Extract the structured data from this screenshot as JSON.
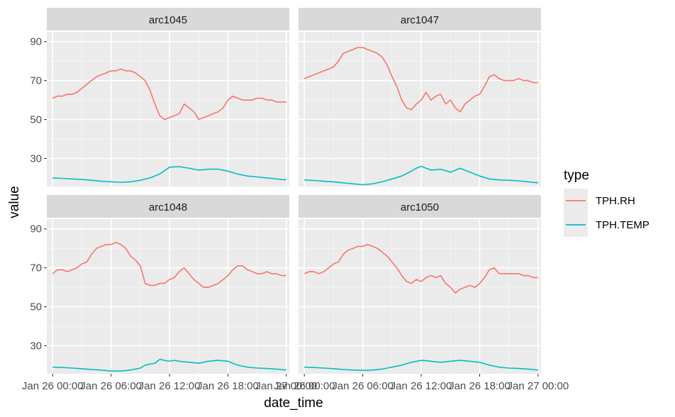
{
  "chart_data": {
    "type": "line",
    "facet_by": "station",
    "xlabel": "date_time",
    "ylabel": "value",
    "xlim": [
      -0.6,
      24.3
    ],
    "ylim": [
      15.6,
      95
    ],
    "x_ticks": [
      0,
      6,
      12,
      18,
      24
    ],
    "x_tick_labels": [
      "Jan 26 00:00",
      "Jan 26 06:00",
      "Jan 26 12:00",
      "Jan 26 18:00",
      "Jan 27 00:00"
    ],
    "y_ticks": [
      30,
      50,
      70,
      90
    ],
    "y_tick_labels": [
      "30",
      "50",
      "70",
      "90"
    ],
    "grid": true,
    "legend": {
      "title": "type",
      "position": "right",
      "entries": [
        {
          "name": "TPH.RH",
          "color": "#F8766D"
        },
        {
          "name": "TPH.TEMP",
          "color": "#00BFC4"
        }
      ]
    },
    "colors": {
      "TPH.RH": "#F8766D",
      "TPH.TEMP": "#00BFC4"
    },
    "panels": [
      {
        "title": "arc1045",
        "series": [
          {
            "name": "TPH.RH",
            "x": [
              0,
              0.5,
              1,
              1.5,
              2,
              2.5,
              3,
              3.5,
              4,
              4.5,
              5,
              5.5,
              6,
              6.5,
              7,
              7.5,
              8,
              8.5,
              9,
              9.5,
              10,
              10.5,
              11,
              11.5,
              12,
              12.5,
              13,
              13.5,
              14,
              14.5,
              15,
              15.5,
              16,
              16.5,
              17,
              17.5,
              18,
              18.5,
              19,
              19.5,
              20,
              20.5,
              21,
              21.5,
              22,
              22.5,
              23,
              23.5,
              24
            ],
            "y": [
              61,
              62,
              62,
              63,
              63,
              64,
              66,
              68,
              70,
              72,
              73,
              74,
              75,
              75,
              76,
              75,
              75,
              74,
              72,
              70,
              65,
              58,
              52,
              50,
              51,
              52,
              53,
              58,
              56,
              54,
              50,
              51,
              52,
              53,
              54,
              56,
              60,
              62,
              61,
              60,
              60,
              60,
              61,
              61,
              60,
              60,
              59,
              59,
              59
            ]
          },
          {
            "name": "TPH.TEMP",
            "x": [
              0,
              1,
              2,
              3,
              4,
              5,
              6,
              7,
              8,
              9,
              10,
              11,
              12,
              13,
              14,
              15,
              16,
              17,
              18,
              19,
              20,
              21,
              22,
              23,
              24
            ],
            "y": [
              20,
              19.8,
              19.5,
              19.2,
              18.8,
              18.3,
              18,
              17.8,
              18,
              18.8,
              20,
              22,
              25.5,
              25.8,
              25,
              24,
              24.5,
              24.5,
              23.5,
              22,
              21,
              20.5,
              20,
              19.5,
              19
            ]
          }
        ]
      },
      {
        "title": "arc1047",
        "series": [
          {
            "name": "TPH.RH",
            "x": [
              0,
              0.5,
              1,
              1.5,
              2,
              2.5,
              3,
              3.5,
              4,
              4.5,
              5,
              5.5,
              6,
              6.5,
              7,
              7.5,
              8,
              8.5,
              9,
              9.5,
              10,
              10.5,
              11,
              11.5,
              12,
              12.5,
              13,
              13.5,
              14,
              14.5,
              15,
              15.5,
              16,
              16.5,
              17,
              17.5,
              18,
              18.5,
              19,
              19.5,
              20,
              20.5,
              21,
              21.5,
              22,
              22.5,
              23,
              23.5,
              24
            ],
            "y": [
              71,
              72,
              73,
              74,
              75,
              76,
              77,
              80,
              84,
              85,
              86,
              87,
              87,
              86,
              85,
              84,
              82,
              78,
              72,
              67,
              60,
              56,
              55,
              58,
              60,
              64,
              60,
              62,
              63,
              58,
              60,
              56,
              54,
              58,
              60,
              62,
              63,
              67,
              72,
              73,
              71,
              70,
              70,
              70,
              71,
              70,
              70,
              69,
              69
            ]
          },
          {
            "name": "TPH.TEMP",
            "x": [
              0,
              1,
              2,
              3,
              4,
              5,
              6,
              7,
              8,
              9,
              10,
              11,
              11.5,
              12,
              12.5,
              13,
              14,
              15,
              16,
              17,
              18,
              19,
              20,
              21,
              22,
              23,
              24
            ],
            "y": [
              19,
              18.7,
              18.3,
              18,
              17.5,
              17,
              16.5,
              17,
              18,
              19.5,
              21,
              23.5,
              25,
              26,
              25,
              24,
              24.5,
              23,
              25,
              23,
              21,
              19.5,
              19,
              18.8,
              18.5,
              18,
              17.5
            ]
          }
        ]
      },
      {
        "title": "arc1048",
        "series": [
          {
            "name": "TPH.RH",
            "x": [
              0,
              0.5,
              1,
              1.5,
              2,
              2.5,
              3,
              3.5,
              4,
              4.5,
              5,
              5.5,
              6,
              6.5,
              7,
              7.5,
              8,
              8.5,
              9,
              9.5,
              10,
              10.5,
              11,
              11.5,
              12,
              12.5,
              13,
              13.5,
              14,
              14.5,
              15,
              15.5,
              16,
              16.5,
              17,
              17.5,
              18,
              18.5,
              19,
              19.5,
              20,
              20.5,
              21,
              21.5,
              22,
              22.5,
              23,
              23.5,
              24
            ],
            "y": [
              67,
              69,
              69,
              68,
              69,
              70,
              72,
              73,
              77,
              80,
              81,
              82,
              82,
              83,
              82,
              80,
              76,
              74,
              71,
              62,
              61,
              61,
              62,
              62,
              64,
              65,
              68,
              70,
              67,
              64,
              62,
              60,
              60,
              61,
              62,
              64,
              66,
              69,
              71,
              71,
              69,
              68,
              67,
              67,
              68,
              67,
              67,
              66,
              66
            ]
          },
          {
            "name": "TPH.TEMP",
            "x": [
              0,
              1,
              2,
              3,
              4,
              5,
              6,
              7,
              8,
              9,
              9.5,
              10,
              10.5,
              11,
              11.5,
              12,
              12.5,
              13,
              14,
              15,
              16,
              17,
              18,
              19,
              20,
              21,
              22,
              23,
              24
            ],
            "y": [
              19,
              18.8,
              18.5,
              18.2,
              17.8,
              17.5,
              17,
              17,
              17.5,
              18.5,
              20,
              20.5,
              21,
              23,
              22.5,
              22,
              22.5,
              22,
              21.5,
              21,
              22,
              22.5,
              22,
              20,
              19,
              18.5,
              18.3,
              18,
              17.5
            ]
          }
        ]
      },
      {
        "title": "arc1050",
        "series": [
          {
            "name": "TPH.RH",
            "x": [
              0,
              0.5,
              1,
              1.5,
              2,
              2.5,
              3,
              3.5,
              4,
              4.5,
              5,
              5.5,
              6,
              6.5,
              7,
              7.5,
              8,
              8.5,
              9,
              9.5,
              10,
              10.5,
              11,
              11.5,
              12,
              12.5,
              13,
              13.5,
              14,
              14.5,
              15,
              15.5,
              16,
              16.5,
              17,
              17.5,
              18,
              18.5,
              19,
              19.5,
              20,
              20.5,
              21,
              21.5,
              22,
              22.5,
              23,
              23.5,
              24
            ],
            "y": [
              67,
              68,
              68,
              67,
              68,
              70,
              72,
              73,
              77,
              79,
              80,
              81,
              81,
              82,
              81,
              80,
              78,
              76,
              73,
              70,
              66,
              63,
              62,
              64,
              63,
              65,
              66,
              65,
              66,
              62,
              60,
              57,
              59,
              60,
              61,
              60,
              62,
              65,
              69,
              70,
              67,
              67,
              67,
              67,
              67,
              66,
              66,
              65,
              65
            ]
          },
          {
            "name": "TPH.TEMP",
            "x": [
              0,
              1,
              2,
              3,
              4,
              5,
              6,
              7,
              8,
              9,
              10,
              11,
              12,
              12.5,
              13,
              14,
              15,
              16,
              17,
              18,
              19,
              20,
              21,
              22,
              23,
              24
            ],
            "y": [
              19,
              18.8,
              18.5,
              18.2,
              17.8,
              17.5,
              17.3,
              17.5,
              18,
              19,
              20,
              21.5,
              22.5,
              22.3,
              22,
              21.5,
              22,
              22.5,
              22,
              21.5,
              20,
              19,
              18.5,
              18.3,
              18,
              17.5
            ]
          }
        ]
      }
    ]
  }
}
